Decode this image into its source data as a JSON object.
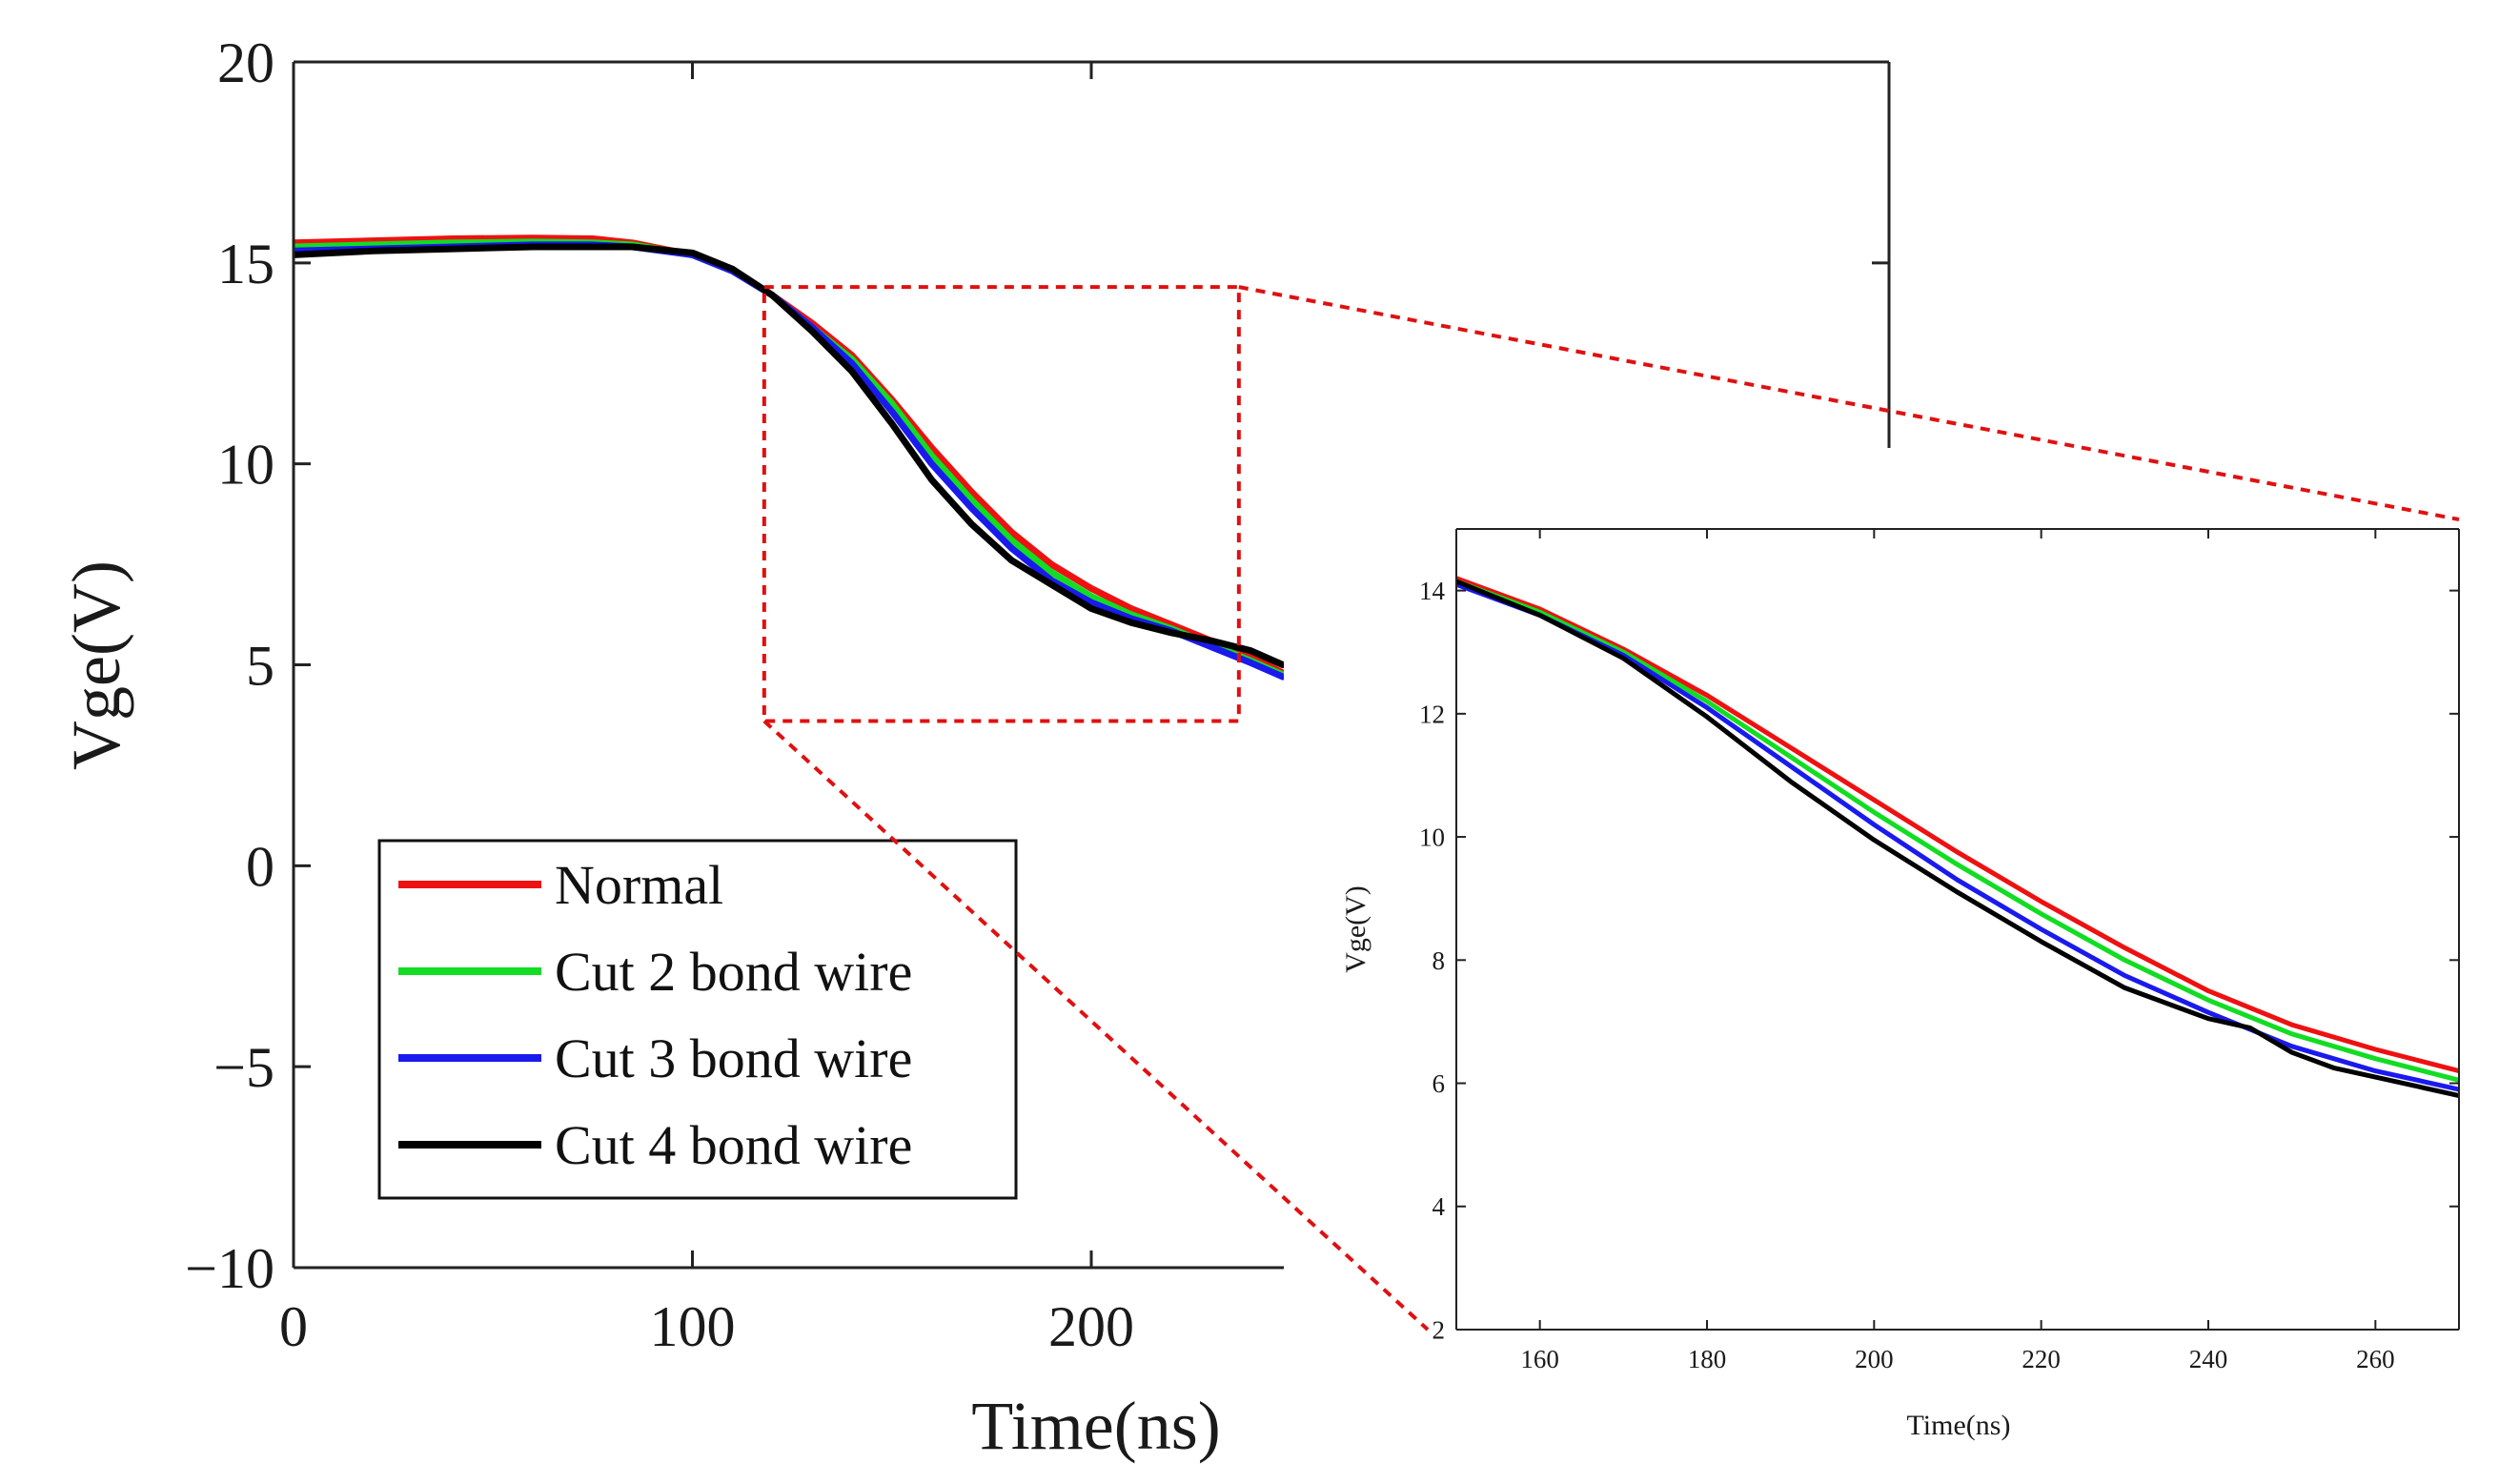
{
  "colors": {
    "normal": "#ee1111",
    "cut2": "#11dd22",
    "cut3": "#1a1aee",
    "cut4": "#000000",
    "zoom_marker": "#e01010"
  },
  "chart_data": [
    {
      "id": "main",
      "type": "line",
      "title": "",
      "xlabel": "Time(ns)",
      "ylabel": "Vge(V)",
      "xlim": [
        0,
        400
      ],
      "ylim": [
        -10,
        20
      ],
      "xticks": [
        0,
        100,
        200
      ],
      "xtick_labels": [
        "0",
        "100",
        "200"
      ],
      "yticks": [
        -10,
        -5,
        0,
        5,
        10,
        15,
        20
      ],
      "ytick_labels": [
        "−10",
        "−5",
        "0",
        "5",
        "10",
        "15",
        "20"
      ],
      "visible_x_range": [
        0,
        248
      ],
      "legend": {
        "placement": "lower-left",
        "entries": [
          "Normal",
          "Cut 2 bond wire",
          "Cut 3 bond wire",
          "Cut 4 bond wire"
        ]
      },
      "zoom_box": {
        "x": [
          118,
          237
        ],
        "y": [
          3.6,
          14.4
        ]
      },
      "series": [
        {
          "name": "Normal",
          "color_key": "normal",
          "points": [
            [
              0,
              15.5
            ],
            [
              20,
              15.55
            ],
            [
              40,
              15.6
            ],
            [
              60,
              15.62
            ],
            [
              75,
              15.6
            ],
            [
              85,
              15.5
            ],
            [
              100,
              15.2
            ],
            [
              110,
              14.8
            ],
            [
              120,
              14.2
            ],
            [
              130,
              13.5
            ],
            [
              140,
              12.7
            ],
            [
              150,
              11.6
            ],
            [
              160,
              10.4
            ],
            [
              170,
              9.3
            ],
            [
              180,
              8.3
            ],
            [
              190,
              7.5
            ],
            [
              200,
              6.9
            ],
            [
              210,
              6.4
            ],
            [
              220,
              6.0
            ],
            [
              230,
              5.6
            ],
            [
              240,
              5.2
            ],
            [
              248,
              4.8
            ]
          ]
        },
        {
          "name": "Cut 2 bond wire",
          "color_key": "cut2",
          "points": [
            [
              0,
              15.4
            ],
            [
              20,
              15.45
            ],
            [
              40,
              15.5
            ],
            [
              60,
              15.52
            ],
            [
              75,
              15.5
            ],
            [
              85,
              15.45
            ],
            [
              100,
              15.2
            ],
            [
              110,
              14.8
            ],
            [
              120,
              14.2
            ],
            [
              130,
              13.4
            ],
            [
              140,
              12.6
            ],
            [
              150,
              11.5
            ],
            [
              160,
              10.2
            ],
            [
              170,
              9.1
            ],
            [
              180,
              8.1
            ],
            [
              190,
              7.3
            ],
            [
              200,
              6.7
            ],
            [
              210,
              6.25
            ],
            [
              220,
              5.9
            ],
            [
              230,
              5.5
            ],
            [
              240,
              5.1
            ],
            [
              248,
              4.75
            ]
          ]
        },
        {
          "name": "Cut 3 bond wire",
          "color_key": "cut3",
          "points": [
            [
              0,
              15.3
            ],
            [
              20,
              15.35
            ],
            [
              40,
              15.4
            ],
            [
              60,
              15.45
            ],
            [
              75,
              15.45
            ],
            [
              85,
              15.4
            ],
            [
              100,
              15.2
            ],
            [
              110,
              14.8
            ],
            [
              120,
              14.2
            ],
            [
              130,
              13.4
            ],
            [
              140,
              12.5
            ],
            [
              150,
              11.3
            ],
            [
              160,
              10.0
            ],
            [
              170,
              8.9
            ],
            [
              180,
              7.9
            ],
            [
              190,
              7.1
            ],
            [
              200,
              6.55
            ],
            [
              210,
              6.15
            ],
            [
              220,
              5.85
            ],
            [
              230,
              5.45
            ],
            [
              240,
              5.05
            ],
            [
              248,
              4.7
            ]
          ]
        },
        {
          "name": "Cut 4 bond wire",
          "color_key": "cut4",
          "points": [
            [
              0,
              15.2
            ],
            [
              20,
              15.3
            ],
            [
              40,
              15.35
            ],
            [
              60,
              15.4
            ],
            [
              75,
              15.4
            ],
            [
              85,
              15.4
            ],
            [
              100,
              15.25
            ],
            [
              110,
              14.85
            ],
            [
              120,
              14.2
            ],
            [
              130,
              13.3
            ],
            [
              140,
              12.3
            ],
            [
              150,
              11.0
            ],
            [
              160,
              9.6
            ],
            [
              170,
              8.5
            ],
            [
              180,
              7.6
            ],
            [
              190,
              7.0
            ],
            [
              200,
              6.4
            ],
            [
              210,
              6.05
            ],
            [
              220,
              5.8
            ],
            [
              230,
              5.6
            ],
            [
              240,
              5.35
            ],
            [
              248,
              5.0
            ]
          ]
        }
      ]
    },
    {
      "id": "inset",
      "type": "line",
      "title": "",
      "xlabel": "Time(ns)",
      "ylabel": "Vge(V)",
      "xlim": [
        150,
        270
      ],
      "ylim": [
        2,
        15
      ],
      "xticks": [
        160,
        180,
        200,
        220,
        240,
        260
      ],
      "xtick_labels": [
        "160",
        "180",
        "200",
        "220",
        "240",
        "260"
      ],
      "yticks": [
        2,
        4,
        6,
        8,
        10,
        12,
        14
      ],
      "ytick_labels": [
        "2",
        "4",
        "6",
        "8",
        "10",
        "12",
        "14"
      ],
      "series": [
        {
          "name": "Normal",
          "color_key": "normal",
          "points": [
            [
              150,
              14.2
            ],
            [
              160,
              13.7
            ],
            [
              170,
              13.05
            ],
            [
              180,
              12.3
            ],
            [
              190,
              11.45
            ],
            [
              200,
              10.6
            ],
            [
              210,
              9.75
            ],
            [
              220,
              8.95
            ],
            [
              230,
              8.2
            ],
            [
              240,
              7.5
            ],
            [
              250,
              6.95
            ],
            [
              260,
              6.55
            ],
            [
              270,
              6.2
            ]
          ]
        },
        {
          "name": "Cut 2 bond wire",
          "color_key": "cut2",
          "points": [
            [
              150,
              14.15
            ],
            [
              160,
              13.65
            ],
            [
              170,
              13.0
            ],
            [
              180,
              12.2
            ],
            [
              190,
              11.3
            ],
            [
              200,
              10.4
            ],
            [
              210,
              9.55
            ],
            [
              220,
              8.75
            ],
            [
              230,
              8.0
            ],
            [
              240,
              7.35
            ],
            [
              250,
              6.8
            ],
            [
              260,
              6.4
            ],
            [
              270,
              6.05
            ]
          ]
        },
        {
          "name": "Cut 3 bond wire",
          "color_key": "cut3",
          "points": [
            [
              150,
              14.1
            ],
            [
              160,
              13.6
            ],
            [
              170,
              12.95
            ],
            [
              180,
              12.1
            ],
            [
              190,
              11.15
            ],
            [
              200,
              10.2
            ],
            [
              210,
              9.3
            ],
            [
              220,
              8.5
            ],
            [
              230,
              7.75
            ],
            [
              240,
              7.15
            ],
            [
              250,
              6.6
            ],
            [
              260,
              6.2
            ],
            [
              270,
              5.9
            ]
          ]
        },
        {
          "name": "Cut 4 bond wire",
          "color_key": "cut4",
          "points": [
            [
              150,
              14.15
            ],
            [
              160,
              13.6
            ],
            [
              170,
              12.9
            ],
            [
              180,
              11.95
            ],
            [
              190,
              10.9
            ],
            [
              200,
              9.95
            ],
            [
              210,
              9.1
            ],
            [
              220,
              8.3
            ],
            [
              230,
              7.55
            ],
            [
              240,
              7.05
            ],
            [
              245,
              6.9
            ],
            [
              250,
              6.5
            ],
            [
              255,
              6.25
            ],
            [
              260,
              6.1
            ],
            [
              270,
              5.8
            ]
          ]
        }
      ]
    }
  ]
}
